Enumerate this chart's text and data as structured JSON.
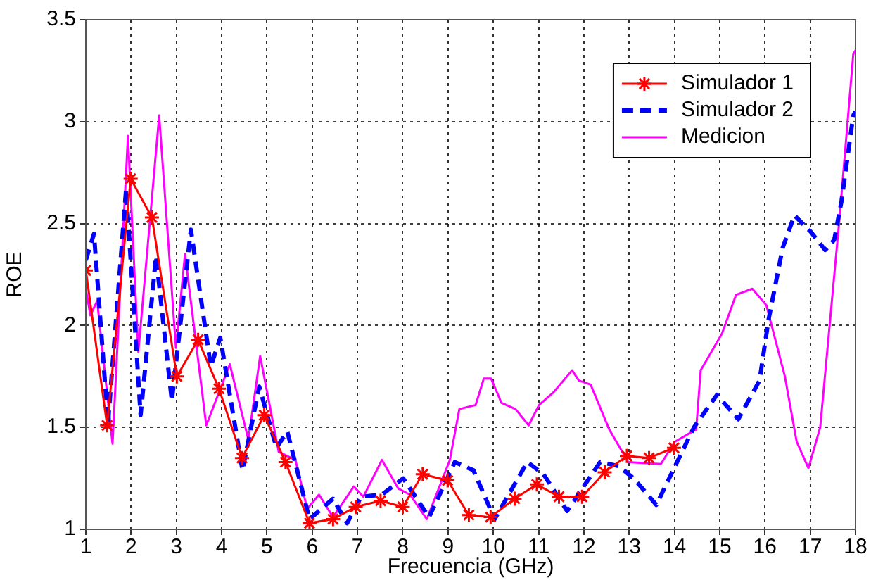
{
  "chart_data": {
    "type": "line",
    "xlabel": "Frecuencia (GHz)",
    "ylabel": "ROE",
    "xlim": [
      1,
      18
    ],
    "xticks": [
      1,
      2,
      3,
      4,
      5,
      6,
      7,
      8,
      9,
      10,
      11,
      12,
      13,
      14,
      15,
      16,
      17,
      18
    ],
    "ylim": [
      1,
      3.5
    ],
    "yticks": [
      1,
      1.5,
      2,
      2.5,
      3,
      3.5
    ],
    "grid": true,
    "legend": "top right",
    "series": [
      {
        "name": "Simulador 1",
        "color": "#ff0000",
        "marker": "cross",
        "line_style": "solid",
        "x": [
          1,
          1.47,
          1.99,
          2.46,
          3.01,
          3.48,
          3.94,
          4.45,
          4.94,
          5.41,
          5.94,
          6.46,
          6.96,
          7.51,
          8,
          8.44,
          8.99,
          9.46,
          9.94,
          10.47,
          10.96,
          11.45,
          11.96,
          12.46,
          12.95,
          13.44,
          13.99
        ],
        "values": [
          2.27,
          1.51,
          2.72,
          2.53,
          1.75,
          1.93,
          1.69,
          1.35,
          1.56,
          1.33,
          1.03,
          1.05,
          1.11,
          1.14,
          1.11,
          1.27,
          1.24,
          1.07,
          1.06,
          1.15,
          1.22,
          1.16,
          1.16,
          1.28,
          1.36,
          1.35,
          1.4
        ]
      },
      {
        "name": "Simulador 2",
        "color": "#0000ff",
        "marker": "none",
        "line_style": "dashed",
        "x": [
          1,
          1.18,
          1.49,
          1.89,
          2.21,
          2.55,
          2.9,
          3.32,
          3.76,
          3.97,
          4.46,
          4.83,
          5.21,
          5.45,
          5.94,
          6.46,
          6.77,
          7.08,
          7.54,
          8.01,
          8.58,
          9.15,
          9.56,
          10.03,
          10.75,
          11.11,
          11.63,
          12.36,
          12.77,
          13.1,
          13.6,
          14.43,
          14.94,
          15.41,
          15.88,
          16.08,
          16.39,
          16.65,
          17.01,
          17.33,
          17.53,
          17.69,
          17.95,
          18
        ],
        "values": [
          2.32,
          2.45,
          1.52,
          2.67,
          1.56,
          2.34,
          1.63,
          2.47,
          1.8,
          1.94,
          1.29,
          1.7,
          1.4,
          1.48,
          1.05,
          1.15,
          1.03,
          1.16,
          1.17,
          1.25,
          1.06,
          1.33,
          1.29,
          1.05,
          1.33,
          1.27,
          1.09,
          1.33,
          1.31,
          1.25,
          1.12,
          1.5,
          1.66,
          1.54,
          1.73,
          2.03,
          2.38,
          2.54,
          2.46,
          2.37,
          2.42,
          2.61,
          3.03,
          3.05
        ]
      },
      {
        "name": "Medicion",
        "color": "#ff00ff",
        "marker": "none",
        "line_style": "solid",
        "x": [
          1,
          1.1,
          1.25,
          1.59,
          1.93,
          2.16,
          2.62,
          2.99,
          3.19,
          3.66,
          4.18,
          4.59,
          4.85,
          5.26,
          5.63,
          5.89,
          6.15,
          6.46,
          6.92,
          7.13,
          7.54,
          7.9,
          8.16,
          8.53,
          9.04,
          9.25,
          9.61,
          9.79,
          9.95,
          10.18,
          10.49,
          10.78,
          11.01,
          11.32,
          11.74,
          11.89,
          12.15,
          12.56,
          12.98,
          13.7,
          14.01,
          14.48,
          14.58,
          15.05,
          15.36,
          15.72,
          16.03,
          16.44,
          16.7,
          16.96,
          17.22,
          17.64,
          17.95,
          18
        ],
        "values": [
          2.18,
          2.05,
          2.12,
          1.42,
          2.93,
          1.87,
          3.03,
          1.89,
          2.35,
          1.51,
          1.81,
          1.44,
          1.85,
          1.38,
          1.34,
          1.1,
          1.17,
          1.06,
          1.21,
          1.16,
          1.34,
          1.2,
          1.17,
          1.05,
          1.34,
          1.59,
          1.61,
          1.74,
          1.74,
          1.62,
          1.59,
          1.51,
          1.61,
          1.67,
          1.78,
          1.73,
          1.71,
          1.49,
          1.33,
          1.32,
          1.43,
          1.49,
          1.78,
          1.96,
          2.15,
          2.18,
          2.1,
          1.75,
          1.43,
          1.3,
          1.5,
          2.51,
          3.33,
          3.35
        ]
      }
    ]
  }
}
